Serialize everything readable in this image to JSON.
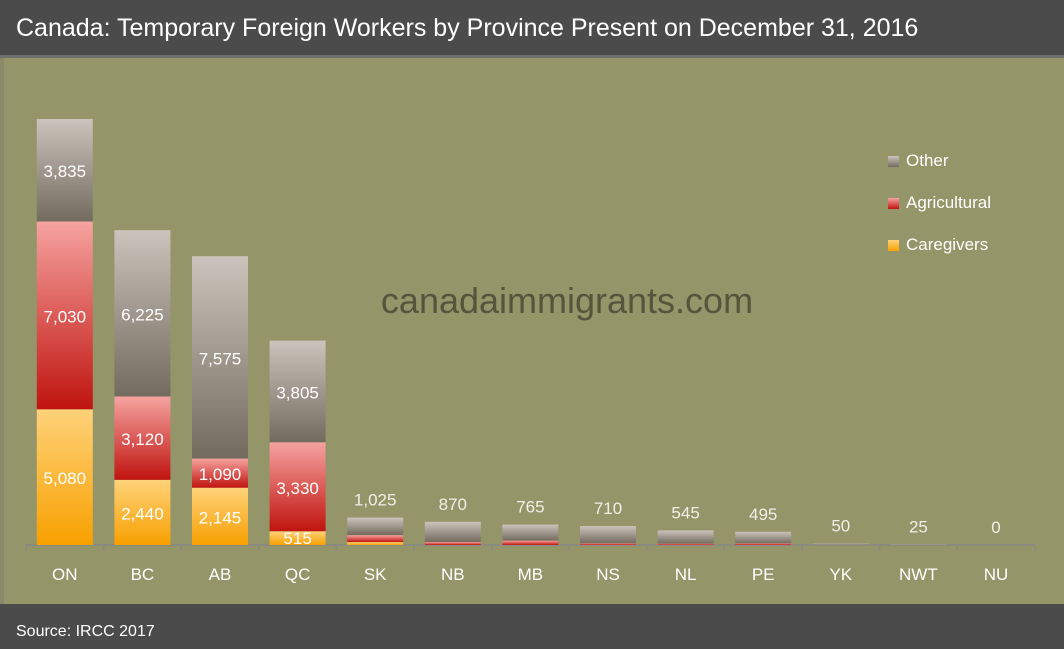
{
  "title": "Canada: Temporary Foreign Workers by Province Present on December 31, 2016",
  "source": "Source: IRCC 2017",
  "watermark": "canadaimmigrants.com",
  "chart_data": {
    "type": "bar",
    "stacked": true,
    "title": "Canada: Temporary Foreign Workers by Province Present on December 31, 2016",
    "categories": [
      "ON",
      "BC",
      "AB",
      "QC",
      "SK",
      "NB",
      "MB",
      "NS",
      "NL",
      "PE",
      "YK",
      "NWT",
      "NU"
    ],
    "series": [
      {
        "name": "Caregivers",
        "color": "#f7a91a",
        "values": [
          5080,
          2440,
          2145,
          515,
          110,
          0,
          0,
          0,
          0,
          0,
          0,
          0,
          0
        ]
      },
      {
        "name": "Agricultural",
        "color": "#d42a2a",
        "values": [
          7030,
          3120,
          1090,
          3330,
          260,
          110,
          165,
          60,
          50,
          60,
          0,
          0,
          0
        ]
      },
      {
        "name": "Other",
        "color": "#8f877a",
        "values": [
          3835,
          6225,
          7575,
          3805,
          655,
          760,
          600,
          650,
          495,
          435,
          50,
          25,
          0
        ]
      }
    ],
    "segment_labels": {
      "ON": [
        "5,080",
        "7,030",
        "3,835"
      ],
      "BC": [
        "2,440",
        "3,120",
        "6,225"
      ],
      "AB": [
        "2,145",
        "1,090",
        "7,575"
      ],
      "QC": [
        "515",
        "3,330",
        "3,805"
      ]
    },
    "total_labels": {
      "SK": "1,025",
      "NB": "870",
      "MB": "765",
      "NS": "710",
      "NL": "545",
      "PE": "495",
      "YK": "50",
      "NWT": "25",
      "NU": "0"
    },
    "legend_order": [
      "Other",
      "Agricultural",
      "Caregivers"
    ],
    "legend_position": "right",
    "ylim": [
      0,
      16000
    ],
    "grid": false
  }
}
